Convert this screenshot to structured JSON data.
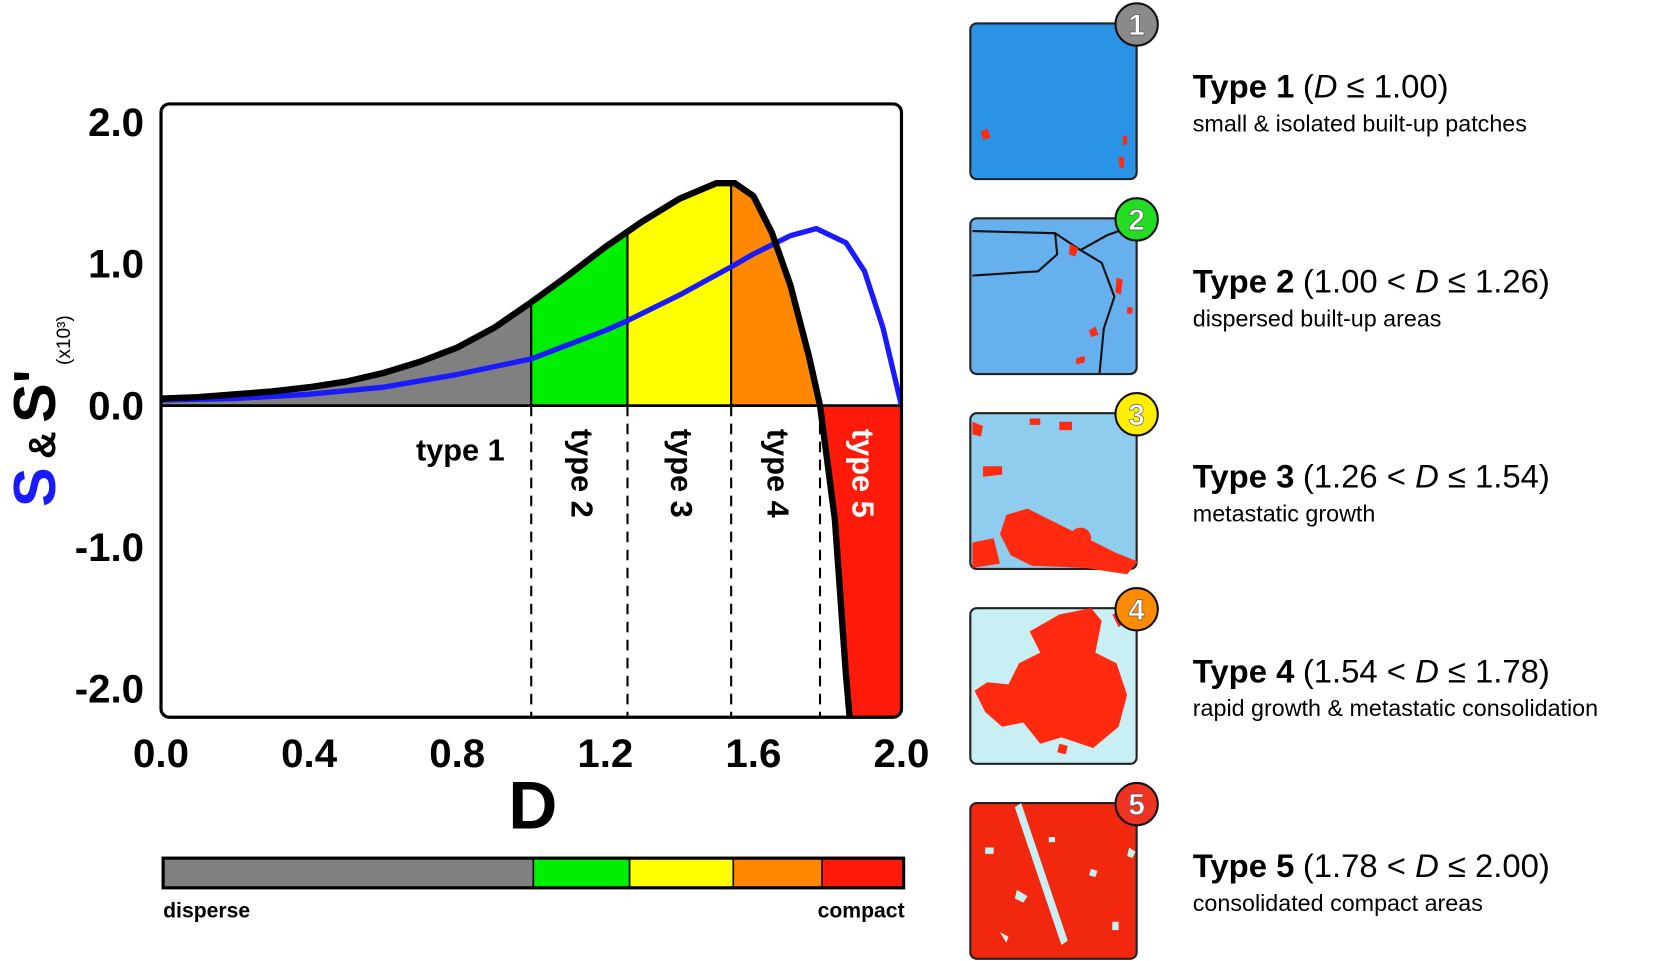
{
  "chart_data": {
    "type": "line",
    "xlabel": "D",
    "ylabel": {
      "s": "S",
      "amp": "&",
      "s_prime": "S'",
      "unit": "(x10³)"
    },
    "ylabel_colors": {
      "s": "#1a1aff",
      "s_prime": "#000000"
    },
    "xlim": [
      0,
      2
    ],
    "ylim": [
      -2.2,
      2.13
    ],
    "xticks": [
      {
        "value": 0,
        "label": "0.0"
      },
      0.4,
      0.8,
      1.2,
      1.6,
      {
        "value": 2,
        "label": "2.0"
      }
    ],
    "yticks": [
      {
        "value": 2,
        "label": "2.0"
      },
      {
        "value": 1,
        "label": "1.0"
      },
      {
        "value": 0,
        "label": "0.0"
      },
      {
        "value": -1,
        "label": "-1.0"
      },
      {
        "value": -2,
        "label": "-2.0"
      }
    ],
    "series": [
      {
        "color": "#000000",
        "x": [
          0,
          0.1,
          0.2,
          0.3,
          0.4,
          0.5,
          0.6,
          0.7,
          0.8,
          0.9,
          1.0,
          1.1,
          1.2,
          1.3,
          1.4,
          1.5,
          1.55,
          1.6,
          1.65,
          1.7,
          1.75,
          1.78,
          1.82,
          1.85,
          1.86
        ],
        "values": [
          0.05,
          0.06,
          0.08,
          0.1,
          0.13,
          0.17,
          0.23,
          0.31,
          0.41,
          0.55,
          0.73,
          0.92,
          1.12,
          1.3,
          1.46,
          1.57,
          1.57,
          1.48,
          1.22,
          0.85,
          0.35,
          0,
          -0.8,
          -1.9,
          -2.2
        ]
      },
      {
        "color": "#1a1aff",
        "x": [
          0,
          0.2,
          0.4,
          0.6,
          0.8,
          1.0,
          1.2,
          1.26,
          1.4,
          1.54,
          1.6,
          1.7,
          1.77,
          1.85,
          1.9,
          1.95,
          2.0
        ],
        "values": [
          0.04,
          0.05,
          0.08,
          0.13,
          0.22,
          0.33,
          0.53,
          0.6,
          0.78,
          0.98,
          1.07,
          1.2,
          1.25,
          1.15,
          0.95,
          0.55,
          0
        ]
      }
    ],
    "regions": [
      {
        "label": "type 1",
        "from": 0,
        "to": 1.0,
        "color": "#808080",
        "label_color": "#000000"
      },
      {
        "label": "type 2",
        "from": 1.0,
        "to": 1.26,
        "color": "#00ee00",
        "label_color": "#000000"
      },
      {
        "label": "type 3",
        "from": 1.26,
        "to": 1.54,
        "color": "#ffff00",
        "label_color": "#000000"
      },
      {
        "label": "type 4",
        "from": 1.54,
        "to": 1.78,
        "color": "#ff8800",
        "label_color": "#000000"
      },
      {
        "label": "type 5",
        "from": 1.78,
        "to": 2.0,
        "color": "#ff1a0a",
        "label_color": "#ffffff"
      }
    ],
    "colorbar_labels": [
      "disperse",
      "compact"
    ]
  },
  "panels": [
    {
      "number": "1",
      "badge_color": "#8a8a8a",
      "bg": "#2a93e6",
      "name": "Type 1",
      "condition": [
        "(",
        "D",
        " ≤ 1.00)"
      ],
      "desc": "small & isolated built-up patches"
    },
    {
      "number": "2",
      "badge_color": "#22dd22",
      "bg": "#66b0ee",
      "name": "Type 2",
      "condition": [
        "(1.00 < ",
        "D",
        " ≤ 1.26)"
      ],
      "desc": "dispersed built-up areas"
    },
    {
      "number": "3",
      "badge_color": "#ffee00",
      "bg": "#8ecdee",
      "name": "Type 3",
      "condition": [
        "(1.26 < ",
        "D",
        " ≤ 1.54)"
      ],
      "desc": "metastatic growth"
    },
    {
      "number": "4",
      "badge_color": "#ff8c00",
      "bg": "#c8eff4",
      "name": "Type 4",
      "condition": [
        "(1.54 < ",
        "D",
        " ≤ 1.78)"
      ],
      "desc": "rapid growth & metastatic consolidation"
    },
    {
      "number": "5",
      "badge_color": "#ee3322",
      "bg": "#f2280e",
      "name": "Type 5",
      "condition": [
        "(1.78 < ",
        "D",
        " ≤ 2.00)"
      ],
      "desc": "consolidated compact areas"
    }
  ]
}
